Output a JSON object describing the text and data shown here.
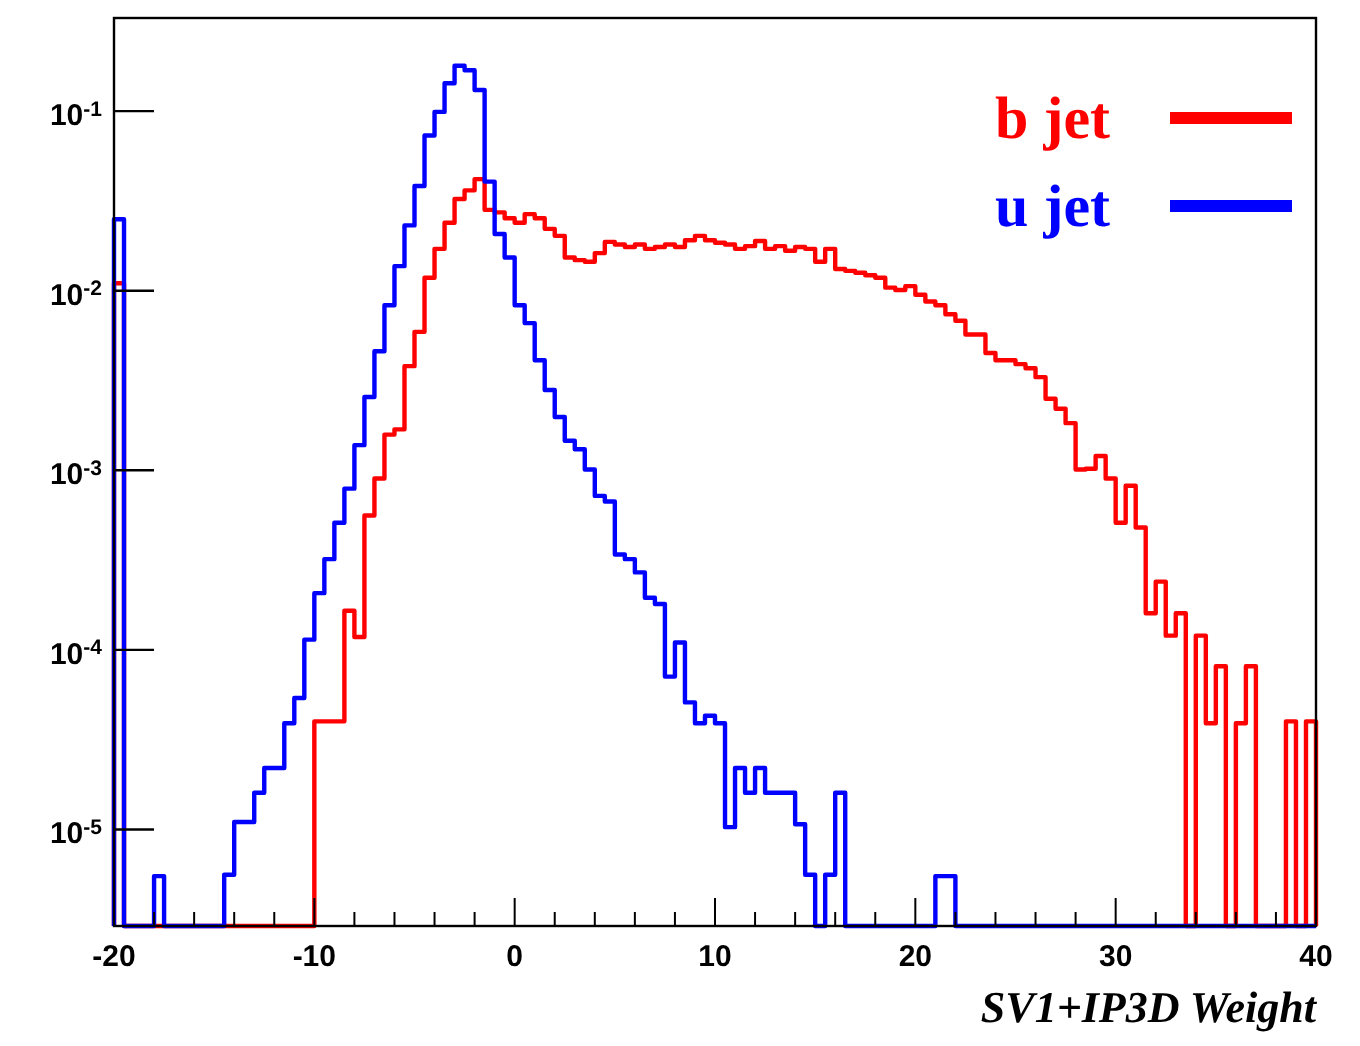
{
  "chart_data": {
    "type": "histogram",
    "xlabel": "SV1+IP3D Weight",
    "log": "y",
    "grid": false,
    "legend": "top right",
    "bins": [
      -20,
      -19.5,
      -19,
      -18.5,
      -18,
      -17.5,
      -17,
      -16.5,
      -16,
      -15.5,
      -15,
      -14.5,
      -14,
      -13.5,
      -13,
      -12.5,
      -12,
      -11.5,
      -11,
      -10.5,
      -10,
      -9.5,
      -9,
      -8.5,
      -8,
      -7.5,
      -7,
      -6.5,
      -6,
      -5.5,
      -5,
      -4.5,
      -4,
      -3.5,
      -3,
      -2.5,
      -2,
      -1.5,
      -1,
      -0.5,
      0,
      0.5,
      1,
      1.5,
      2,
      2.5,
      3,
      3.5,
      4,
      4.5,
      5,
      5.5,
      6,
      6.5,
      7,
      7.5,
      8,
      8.5,
      9,
      9.5,
      10,
      10.5,
      11,
      11.5,
      12,
      12.5,
      13,
      13.5,
      14,
      14.5,
      15,
      15.5,
      16,
      16.5,
      17,
      17.5,
      18,
      18.5,
      19,
      19.5,
      20,
      20.5,
      21,
      21.5,
      22,
      22.5,
      23,
      23.5,
      24,
      24.5,
      25,
      25.5,
      26,
      26.5,
      27,
      27.5,
      28,
      28.5,
      29,
      29.5,
      30,
      30.5,
      31,
      31.5,
      32,
      32.5,
      33,
      33.5,
      34,
      34.5,
      35,
      35.5,
      36,
      36.5,
      37,
      37.5,
      38,
      38.5,
      39,
      39.5,
      40
    ],
    "series": [
      {
        "name": "b jet",
        "color": "#ff0000",
        "values": [
          0.011,
          null,
          null,
          null,
          null,
          null,
          null,
          null,
          null,
          null,
          null,
          null,
          null,
          null,
          null,
          null,
          null,
          null,
          null,
          null,
          4e-05,
          4e-05,
          4e-05,
          0.000165,
          0.000118,
          0.00056,
          0.0009,
          0.00158,
          0.00169,
          0.0038,
          0.0059,
          0.0118,
          0.0171,
          0.0239,
          0.0324,
          0.0362,
          0.0418,
          0.0282,
          0.0273,
          0.0253,
          0.0239,
          0.0267,
          0.0253,
          0.0221,
          0.0202,
          0.0153,
          0.0148,
          0.0145,
          0.0162,
          0.0187,
          0.0181,
          0.0175,
          0.0181,
          0.0171,
          0.0175,
          0.0181,
          0.0175,
          0.0191,
          0.0202,
          0.0191,
          0.0185,
          0.0181,
          0.0171,
          0.0177,
          0.0189,
          0.0171,
          0.0177,
          0.0167,
          0.0175,
          0.0171,
          0.0145,
          0.0171,
          0.0132,
          0.0129,
          0.0126,
          0.0122,
          0.0118,
          0.0104,
          0.0101,
          0.0106,
          0.0095,
          0.0087,
          0.0083,
          0.0074,
          0.0068,
          0.0057,
          0.0057,
          0.0045,
          0.0041,
          0.0041,
          0.0039,
          0.0037,
          0.0033,
          0.0025,
          0.0022,
          0.00183,
          0.00101,
          0.00102,
          0.0012,
          0.0009,
          0.00051,
          0.00082,
          0.00048,
          0.00016,
          0.00024,
          0.00012,
          0.00016,
          null,
          0.00012,
          3.9e-05,
          8.1e-05,
          null,
          3.9e-05,
          8.1e-05,
          null,
          null,
          null,
          4e-05,
          null,
          4e-05
        ]
      },
      {
        "name": "u jet",
        "color": "#0000ff",
        "values": [
          0.025,
          null,
          null,
          null,
          5.5e-06,
          null,
          null,
          null,
          null,
          null,
          null,
          5.6e-06,
          1.1e-05,
          1.1e-05,
          1.6e-05,
          2.2e-05,
          2.2e-05,
          3.9e-05,
          5.4e-05,
          0.000114,
          0.000207,
          0.00032,
          0.00051,
          0.00079,
          0.00138,
          0.00256,
          0.0046,
          0.0083,
          0.0137,
          0.0231,
          0.0383,
          0.0731,
          0.099,
          0.143,
          0.179,
          0.169,
          0.131,
          0.0405,
          0.0207,
          0.0153,
          0.0083,
          0.0066,
          0.0041,
          0.0028,
          0.00198,
          0.00146,
          0.00131,
          0.00101,
          0.00072,
          0.00067,
          0.00034,
          0.00032,
          0.00027,
          0.000195,
          0.00018,
          7.1e-05,
          0.00011,
          5.1e-05,
          3.9e-05,
          4.3e-05,
          3.9e-05,
          1.03e-05,
          2.2e-05,
          1.6e-05,
          2.2e-05,
          1.6e-05,
          1.6e-05,
          1.6e-05,
          1.07e-05,
          5.6e-06,
          null,
          5.6e-06,
          1.6e-05,
          null,
          null,
          null,
          null,
          null,
          null,
          null,
          null,
          null,
          5.5e-06,
          5.5e-06,
          null,
          null,
          null,
          null,
          null,
          null,
          null,
          null,
          null,
          null,
          null,
          null,
          null,
          null,
          null,
          null,
          null,
          null,
          null,
          null,
          null,
          null,
          null,
          null,
          null,
          null,
          null,
          null,
          null,
          null,
          null,
          null,
          null,
          null,
          null,
          null
        ]
      }
    ],
    "xlim": [
      -20,
      40
    ],
    "xticks": [
      -20,
      {
        "value": -18,
        "label": null
      },
      {
        "value": -16,
        "label": null
      },
      {
        "value": -14,
        "label": null
      },
      {
        "value": -12,
        "label": null
      },
      -10,
      {
        "value": -8,
        "label": null
      },
      {
        "value": -6,
        "label": null
      },
      {
        "value": -4,
        "label": null
      },
      {
        "value": -2,
        "label": null
      },
      0,
      {
        "value": 2,
        "label": null
      },
      {
        "value": 4,
        "label": null
      },
      {
        "value": 6,
        "label": null
      },
      {
        "value": 8,
        "label": null
      },
      10,
      {
        "value": 12,
        "label": null
      },
      {
        "value": 14,
        "label": null
      },
      {
        "value": 16,
        "label": null
      },
      {
        "value": 18,
        "label": null
      },
      20,
      {
        "value": 22,
        "label": null
      },
      {
        "value": 24,
        "label": null
      },
      {
        "value": 26,
        "label": null
      },
      {
        "value": 28,
        "label": null
      },
      30,
      {
        "value": 32,
        "label": null
      },
      {
        "value": 34,
        "label": null
      },
      {
        "value": 36,
        "label": null
      },
      {
        "value": 38,
        "label": null
      },
      40
    ],
    "ylim": [
      2.9e-06,
      0.33
    ],
    "yticks": [
      {
        "value": 1e-05,
        "label": "10$^{-5}$"
      },
      {
        "value": 0.0001,
        "label": "10$^{-4}$"
      },
      {
        "value": 0.001,
        "label": "10$^{-3}$"
      },
      {
        "value": 0.01,
        "label": "10$^{-2}$"
      },
      {
        "value": 0.1,
        "label": "10$^{-1}$"
      }
    ]
  }
}
